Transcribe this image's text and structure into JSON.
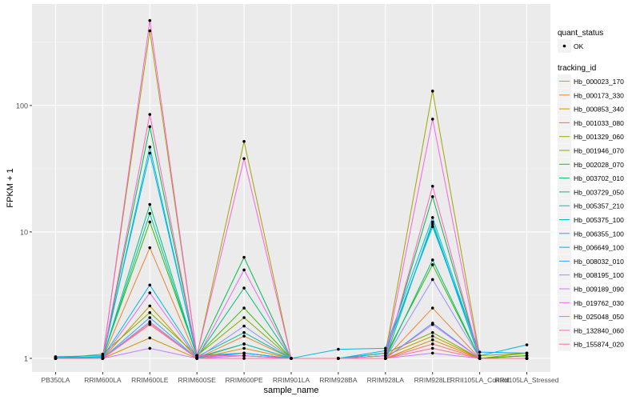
{
  "chart_data": {
    "type": "line",
    "xlabel": "sample_name",
    "ylabel": "FPKM + 1",
    "y_scale": "log10",
    "ylim": [
      0.78,
      635
    ],
    "y_ticks": [
      1,
      10,
      100
    ],
    "y_tick_labels": [
      "1",
      "10",
      "100"
    ],
    "grid": true,
    "legend_placement": "right",
    "categories": [
      "PB350LA",
      "RRIM600LA",
      "RRIM600LE",
      "RRIM600SE",
      "RRIM600PE",
      "RRIM901LA",
      "RRIM928BA",
      "RRIM928LA",
      "RRIM928LE",
      "RRII105LA_Control",
      "RRII105LA_Stressed"
    ],
    "shape_legend": {
      "title": "quant_status",
      "entries": [
        "OK"
      ]
    },
    "color_legend_title": "tracking_id",
    "series": [
      {
        "name": "Hb_000023_170",
        "color": "#F8766D",
        "values": [
          1,
          1,
          1.9,
          1,
          1.1,
          1,
          1,
          1,
          1.3,
          1,
          1
        ]
      },
      {
        "name": "Hb_000173_330",
        "color": "#EA8331",
        "values": [
          1,
          1,
          7.5,
          1,
          1.5,
          1,
          1,
          1,
          2.5,
          1,
          1.05
        ]
      },
      {
        "name": "Hb_000853_340",
        "color": "#D89000",
        "values": [
          1,
          1,
          1.45,
          1,
          1.2,
          1,
          1,
          1,
          1.4,
          1,
          1
        ]
      },
      {
        "name": "Hb_001033_080",
        "color": "#C09B00",
        "values": [
          1,
          1,
          2.6,
          1,
          1.3,
          1,
          1,
          1.05,
          1.5,
          1,
          1.05
        ]
      },
      {
        "name": "Hb_001329_060",
        "color": "#A3A500",
        "values": [
          1,
          1.02,
          390,
          1.05,
          52,
          1,
          1,
          1.1,
          130,
          1.05,
          1.1
        ]
      },
      {
        "name": "Hb_001946_070",
        "color": "#7CAE00",
        "values": [
          1,
          1.08,
          2.3,
          1.05,
          2.1,
          1,
          1,
          1.1,
          1.6,
          1,
          1.1
        ]
      },
      {
        "name": "Hb_002028_070",
        "color": "#39B600",
        "values": [
          1,
          1.03,
          12,
          1.05,
          2.5,
          1,
          1,
          1.05,
          5.5,
          1,
          1.05
        ]
      },
      {
        "name": "Hb_003702_010",
        "color": "#00BB4E",
        "values": [
          1,
          1,
          68,
          1.05,
          6.3,
          1,
          1,
          1.05,
          19,
          1,
          1
        ]
      },
      {
        "name": "Hb_003729_050",
        "color": "#00BF7D",
        "values": [
          1,
          1,
          16.5,
          1.03,
          3.6,
          1,
          1,
          1,
          6,
          1,
          1
        ]
      },
      {
        "name": "Hb_005357_210",
        "color": "#00C1A3",
        "values": [
          1,
          1,
          14,
          1.03,
          1.6,
          1,
          1,
          1,
          12,
          1,
          1
        ]
      },
      {
        "name": "Hb_005375_100",
        "color": "#00BFC4",
        "values": [
          1,
          1,
          47,
          1.02,
          1.3,
          1,
          1,
          1.1,
          11.5,
          1,
          1
        ]
      },
      {
        "name": "Hb_006355_100",
        "color": "#00BAE0",
        "values": [
          1.02,
          1.02,
          3.8,
          1.02,
          1.1,
          1,
          1.18,
          1.2,
          13,
          1.05,
          1.28
        ]
      },
      {
        "name": "Hb_006649_100",
        "color": "#00B0F6",
        "values": [
          1.03,
          1.05,
          42,
          1.05,
          1.1,
          1,
          1,
          1.15,
          11,
          1.12,
          1.1
        ]
      },
      {
        "name": "Hb_008032_010",
        "color": "#35A2FF",
        "values": [
          1,
          1,
          2.1,
          1,
          1.05,
          1,
          1,
          1,
          1.9,
          1,
          1
        ]
      },
      {
        "name": "Hb_008195_100",
        "color": "#9590FF",
        "values": [
          1,
          1,
          1.95,
          1,
          1.8,
          1,
          1,
          1,
          4.2,
          1,
          1
        ]
      },
      {
        "name": "Hb_009189_090",
        "color": "#C77CFF",
        "values": [
          1,
          1,
          1.2,
          1,
          1.05,
          1,
          1,
          1,
          1.1,
          1,
          1
        ]
      },
      {
        "name": "Hb_019762_030",
        "color": "#E76BF3",
        "values": [
          1,
          1,
          3.3,
          1,
          5.0,
          1,
          1,
          1,
          1.85,
          1,
          1
        ]
      },
      {
        "name": "Hb_025048_050",
        "color": "#FA62DB",
        "values": [
          1,
          1,
          470,
          1.05,
          38,
          1,
          1,
          1.05,
          78,
          1,
          1
        ]
      },
      {
        "name": "Hb_132840_060",
        "color": "#FF62BC",
        "values": [
          1,
          1,
          85,
          1.05,
          1.05,
          1,
          1,
          1,
          23,
          1,
          1
        ]
      },
      {
        "name": "Hb_155874_020",
        "color": "#FF6C91",
        "values": [
          1,
          1,
          1.85,
          1,
          1,
          1,
          1,
          1,
          1.2,
          1,
          1
        ]
      }
    ]
  }
}
